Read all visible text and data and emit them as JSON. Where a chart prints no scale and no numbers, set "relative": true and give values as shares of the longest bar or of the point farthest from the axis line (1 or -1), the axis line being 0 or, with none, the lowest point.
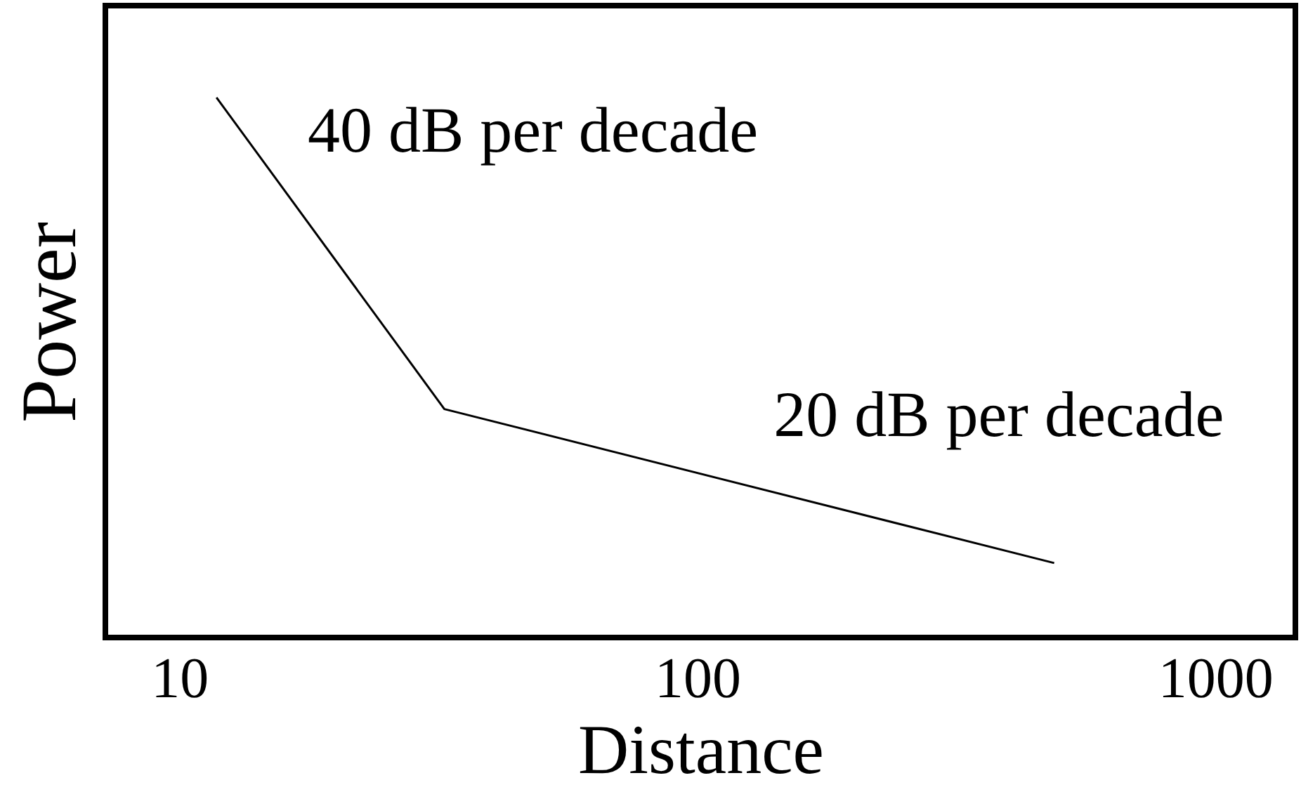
{
  "chart_data": {
    "type": "line",
    "xlabel": "Distance",
    "ylabel": "Power",
    "relative": true,
    "x": [
      11.8,
      32.5,
      489
    ],
    "series": [
      {
        "color": "#000000",
        "values": [
          1,
          0.423,
          0.138
        ]
      }
    ],
    "xlim": [
      7.2,
      1429
    ],
    "xticks": [
      10,
      100,
      1000
    ],
    "log": "x",
    "grid": false,
    "marker": "none",
    "line_style": "solid",
    "annotations": [
      "40 dB per decade",
      "20 dB per decade"
    ]
  }
}
